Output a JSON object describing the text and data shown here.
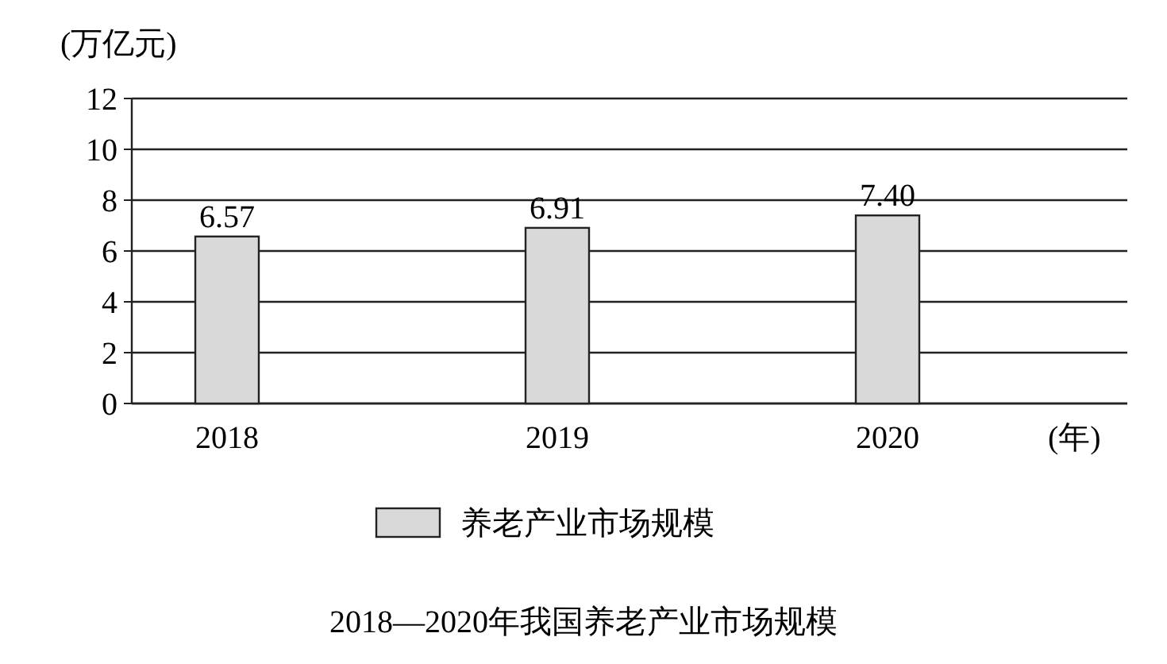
{
  "chart_data": {
    "type": "bar",
    "title": "2018—2020年我国养老产业市场规模",
    "xlabel": "(年)",
    "ylabel": "(万亿元)",
    "categories": [
      "2018",
      "2019",
      "2020"
    ],
    "series": [
      {
        "name": "养老产业市场规模",
        "color": "#d9d9d9",
        "values": [
          6.57,
          6.91,
          7.4
        ],
        "value_labels": [
          "6.57",
          "6.91",
          "7.40"
        ]
      }
    ],
    "ylim": [
      0,
      12
    ],
    "yticks": [
      0,
      2,
      4,
      6,
      8,
      10,
      12
    ],
    "grid": "y",
    "legend": "bottom"
  }
}
